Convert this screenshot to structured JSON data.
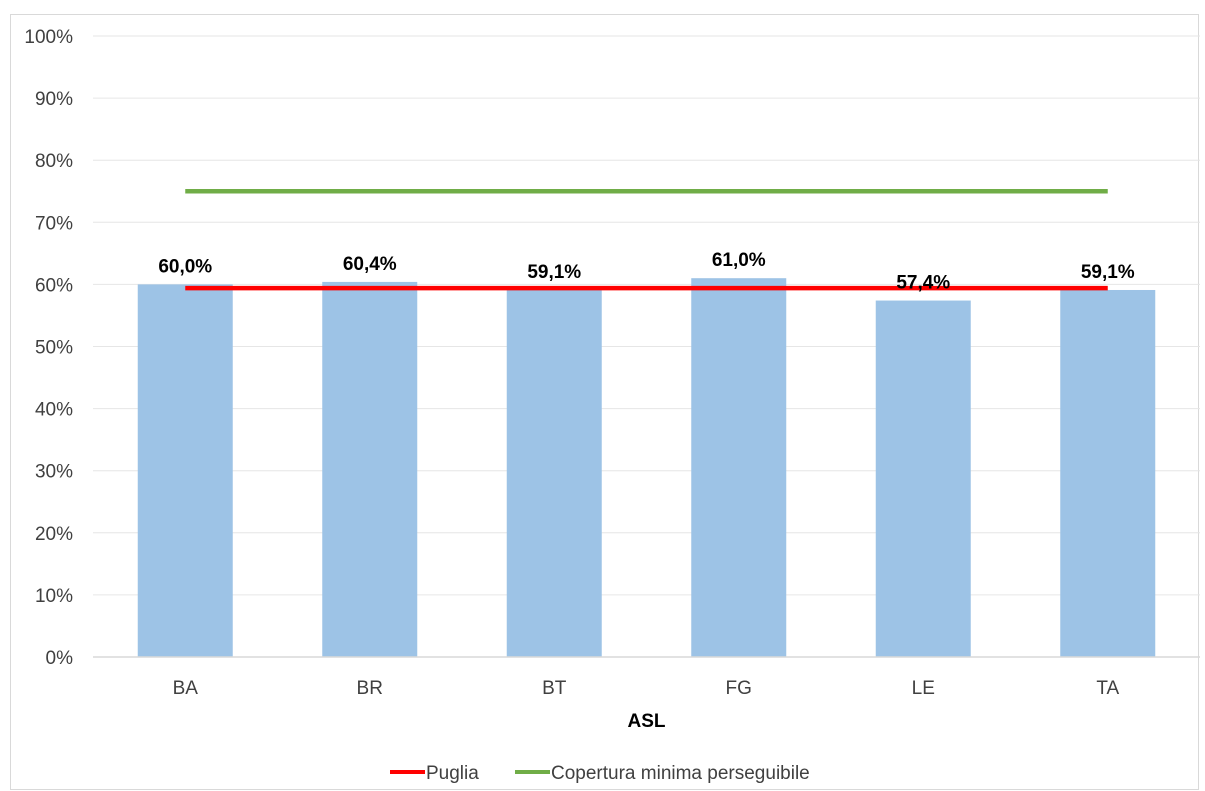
{
  "chart_data": {
    "type": "bar",
    "categories": [
      "BA",
      "BR",
      "BT",
      "FG",
      "LE",
      "TA"
    ],
    "values": [
      60.0,
      60.4,
      59.1,
      61.0,
      57.4,
      59.1
    ],
    "data_labels": [
      "60,0%",
      "60,4%",
      "59,1%",
      "61,0%",
      "57,4%",
      "59,1%"
    ],
    "xlabel": "ASL",
    "ylabel": "",
    "ylim": [
      0,
      100
    ],
    "y_ticks": [
      "0%",
      "10%",
      "20%",
      "30%",
      "40%",
      "50%",
      "60%",
      "70%",
      "80%",
      "90%",
      "100%"
    ],
    "bar_color": "#9dc3e6",
    "reference_lines": [
      {
        "name": "Puglia",
        "value": 59.4,
        "color": "#ff0000"
      },
      {
        "name": "Copertura minima perseguibile",
        "value": 75,
        "color": "#70ad47"
      }
    ],
    "grid": true,
    "legend": "bottom"
  }
}
